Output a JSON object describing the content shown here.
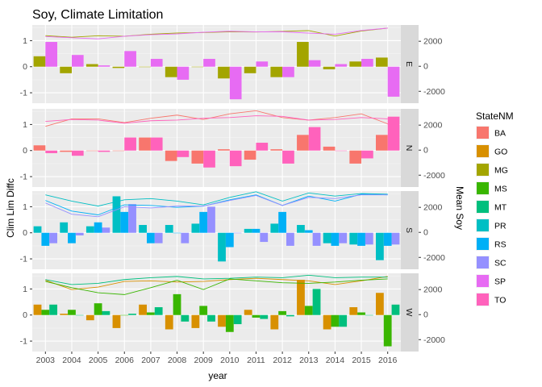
{
  "chart_data": {
    "type": "bar+line",
    "title": "Soy, Climate Limitation",
    "xlabel": "year",
    "ylabel_left": "Clim Lim Diffc",
    "ylabel_right": "Mean Soy",
    "ylim_left": [
      -1.4,
      1.6
    ],
    "ylim_right": [
      -2950,
      3300
    ],
    "yticks_left": [
      -1,
      0,
      1
    ],
    "yticks_right": [
      -2000,
      0,
      2000
    ],
    "x": [
      2003,
      2004,
      2005,
      2006,
      2007,
      2008,
      2009,
      2010,
      2011,
      2012,
      2013,
      2014,
      2015,
      2016
    ],
    "legend_title": "StateNM",
    "legend_placement": "right",
    "grid": true,
    "states": [
      "BA",
      "GO",
      "MG",
      "MS",
      "MT",
      "PR",
      "RS",
      "SC",
      "SP",
      "TO"
    ],
    "colors": {
      "BA": "#F8766D",
      "GO": "#D89000",
      "MG": "#A3A500",
      "MS": "#39B600",
      "MT": "#00BF7D",
      "PR": "#00BFC4",
      "RS": "#00B0F6",
      "SC": "#9590FF",
      "SP": "#E76BF3",
      "TO": "#FF62BC"
    },
    "facets": [
      {
        "region": "E",
        "bars": {
          "MG": [
            0.4,
            -0.25,
            0.1,
            -0.05,
            0.0,
            -0.4,
            0.0,
            -0.45,
            -0.25,
            -0.4,
            0.95,
            -0.1,
            0.2,
            0.35
          ],
          "SP": [
            0.95,
            0.45,
            0.05,
            0.6,
            0.3,
            -0.5,
            0.3,
            -1.25,
            0.2,
            -0.4,
            0.25,
            0.1,
            0.3,
            -1.15
          ]
        },
        "lines": {
          "MG": [
            2450,
            2320,
            2440,
            2400,
            2560,
            2660,
            2700,
            2760,
            2740,
            2790,
            2850,
            2420,
            2820,
            3050
          ],
          "SP": [
            2380,
            2280,
            2190,
            2400,
            2520,
            2590,
            2720,
            2800,
            2750,
            2760,
            2650,
            2560,
            2860,
            3050
          ]
        }
      },
      {
        "region": "N",
        "bars": {
          "BA": [
            0.2,
            -0.05,
            0.0,
            0.0,
            0.5,
            -0.4,
            -0.5,
            0.05,
            -0.35,
            0.05,
            0.6,
            0.15,
            -0.5,
            0.6
          ],
          "TO": [
            -0.1,
            -0.2,
            -0.05,
            0.5,
            0.5,
            -0.25,
            -0.65,
            -0.6,
            0.3,
            -0.5,
            0.9,
            0.0,
            -0.3,
            1.3
          ]
        },
        "lines": {
          "BA": [
            1900,
            2500,
            2500,
            2200,
            2550,
            2800,
            2450,
            2900,
            3150,
            2600,
            2400,
            2600,
            2900,
            2100
          ],
          "TO": [
            2300,
            2450,
            2400,
            2150,
            2350,
            2400,
            2550,
            2600,
            2750,
            2700,
            2400,
            2450,
            2600,
            2500
          ]
        }
      },
      {
        "region": "S",
        "bars": {
          "PR": [
            0.25,
            0.4,
            0.25,
            1.4,
            0.3,
            0.3,
            0.35,
            -1.1,
            0.15,
            0.35,
            0.3,
            -0.4,
            -0.45,
            -1.05
          ],
          "RS": [
            -0.5,
            -0.4,
            0.4,
            0.8,
            -0.4,
            0.0,
            0.8,
            -0.55,
            0.15,
            0.8,
            0.1,
            -0.5,
            -0.5,
            -0.5
          ],
          "SC": [
            -0.4,
            -0.1,
            0.2,
            1.1,
            -0.4,
            -0.4,
            1.0,
            0.0,
            -0.35,
            -0.5,
            -0.5,
            -0.4,
            -0.45,
            -0.45
          ]
        },
        "lines": {
          "PR": [
            3000,
            2500,
            2100,
            2600,
            2700,
            2500,
            2200,
            2800,
            3250,
            2500,
            3150,
            2900,
            3100,
            3050
          ],
          "RS": [
            2550,
            1700,
            1400,
            2200,
            2150,
            2000,
            2100,
            2600,
            3000,
            2150,
            2900,
            2500,
            3050,
            3000
          ],
          "SC": [
            2350,
            1450,
            1250,
            2050,
            1950,
            2100,
            2100,
            2550,
            2950,
            2150,
            2800,
            2700,
            3000,
            3000
          ]
        }
      },
      {
        "region": "W",
        "bars": {
          "GO": [
            0.4,
            0.05,
            -0.2,
            -0.5,
            0.4,
            -0.55,
            -0.5,
            -0.45,
            0.2,
            -0.55,
            1.35,
            -0.55,
            0.3,
            0.85
          ],
          "MS": [
            0.2,
            0.2,
            0.45,
            0.0,
            0.1,
            0.8,
            0.35,
            -0.65,
            -0.1,
            0.15,
            0.35,
            -0.45,
            0.1,
            -1.2
          ],
          "MT": [
            0.4,
            0.0,
            0.15,
            0.05,
            0.3,
            -0.25,
            -0.25,
            -0.35,
            -0.15,
            -0.05,
            1.0,
            -0.45,
            0.0,
            0.4
          ]
        },
        "lines": {
          "GO": [
            2750,
            2000,
            2200,
            2650,
            2700,
            2600,
            2650,
            2800,
            2900,
            2800,
            2700,
            2400,
            2700,
            3050
          ],
          "MS": [
            2650,
            2150,
            1750,
            1600,
            2150,
            2750,
            2000,
            2850,
            2700,
            2550,
            2500,
            2600,
            2750,
            2850
          ],
          "MT": [
            2800,
            2400,
            2500,
            2800,
            2950,
            3050,
            2850,
            2900,
            3000,
            2950,
            3150,
            2950,
            3000,
            3000
          ]
        }
      }
    ]
  }
}
